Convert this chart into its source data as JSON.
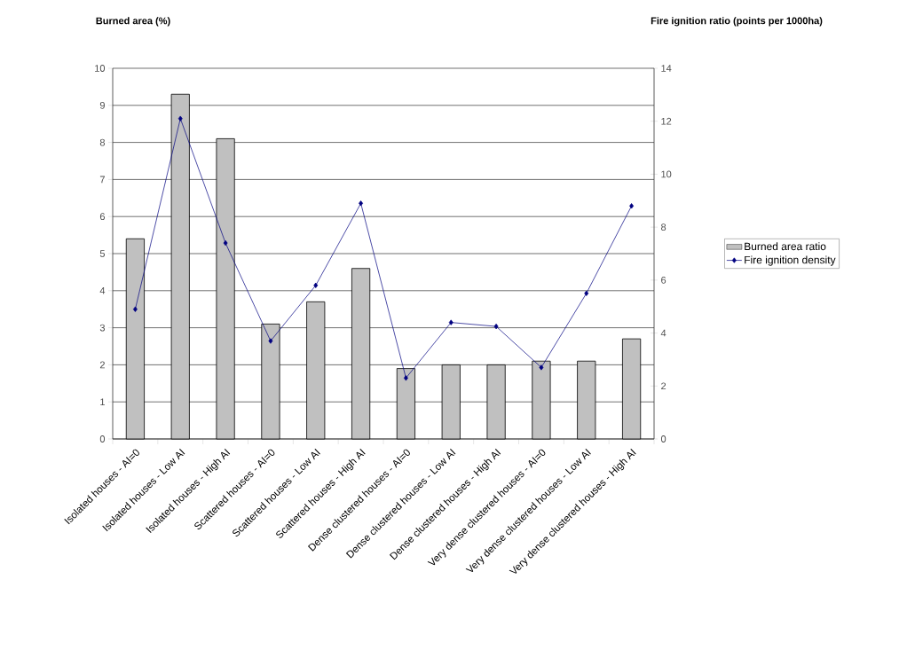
{
  "chart_data": {
    "type": "bar",
    "ylabel": "Burned area (%)",
    "y2label": "Fire ignition ratio (points per 1000ha)",
    "categories": [
      "Isolated houses - AI=0",
      "Isolated houses - Low AI",
      "Isolated houses - High AI",
      "Scattered houses - AI=0",
      "Scattered houses - Low AI",
      "Scattered houses - High AI",
      "Dense clustered houses - AI=0",
      "Dense clustered houses - Low AI",
      "Dense clustered houses - High AI",
      "Very dense clustered houses - AI=0",
      "Very dense clustered houses - Low AI",
      "Very dense clustered houses - High AI"
    ],
    "series": [
      {
        "name": "Burned area ratio",
        "color": "#c0c0c0",
        "values": [
          5.4,
          9.3,
          8.1,
          3.1,
          3.7,
          4.6,
          1.9,
          2.0,
          2.0,
          2.1,
          2.1,
          2.7
        ]
      },
      {
        "name": "Fire ignition density",
        "type": "line",
        "axis": "y2",
        "color": "#000080",
        "marker": "diamond",
        "line_style": "solid",
        "values": [
          4.9,
          12.1,
          7.4,
          3.7,
          5.8,
          8.9,
          2.3,
          4.4,
          4.25,
          2.7,
          5.5,
          8.8
        ]
      }
    ],
    "ylim": [
      0,
      10
    ],
    "yticks": [
      0,
      1,
      2,
      3,
      4,
      5,
      6,
      7,
      8,
      9,
      10
    ],
    "y2lim": [
      0,
      14
    ],
    "y2ticks": [
      0,
      2,
      4,
      6,
      8,
      10,
      12,
      14
    ],
    "grid": "y",
    "legend": "right"
  }
}
